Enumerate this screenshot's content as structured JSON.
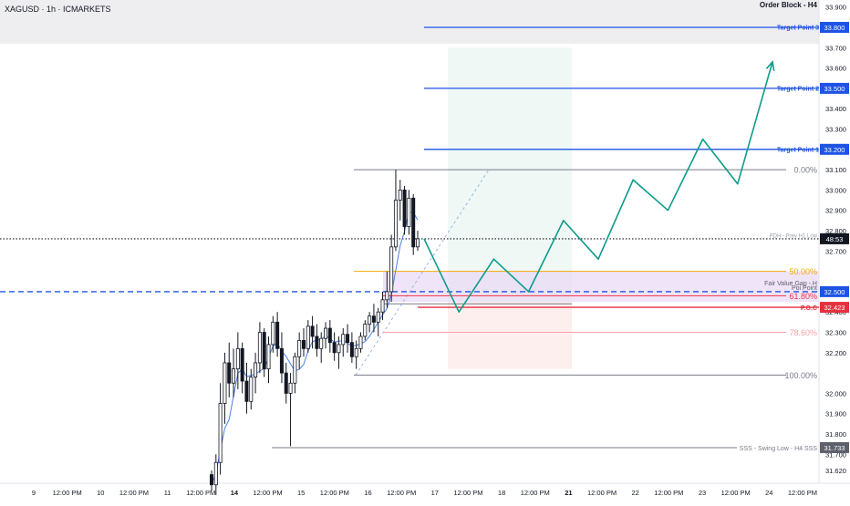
{
  "symbol_label": "XAGUSD · 1h · ICMARKETS",
  "header_right": "Order Block - H4",
  "colors": {
    "accent": "#1e53e5",
    "up_candle": "#ffffff",
    "down_candle": "#131722",
    "path": "#0d9b8a",
    "fib": "#787b86",
    "fib_50": "#f7a600",
    "fib_618": "#f23645",
    "fvg_fill": "#e9d9f5",
    "poc": "#e5313f",
    "ma": "#4a7fe8"
  },
  "chart_data": {
    "type": "candlestick",
    "y_axis_ticks": [
      "33.900",
      "33.700",
      "33.600",
      "33.400",
      "33.300",
      "33.100",
      "33.000",
      "32.900",
      "32.800",
      "32.700",
      "32.400",
      "32.300",
      "32.200",
      "32.000",
      "31.900",
      "31.800",
      "31.700",
      "31.620"
    ],
    "x_axis_ticks": [
      "9",
      "12:00 PM",
      "10",
      "12:00 PM",
      "11",
      "12:00 PM",
      "14",
      "12:00 PM",
      "15",
      "12:00 PM",
      "16",
      "12:00 PM",
      "17",
      "12:00 PM",
      "18",
      "12:00 PM",
      "21",
      "12:00 PM",
      "22",
      "12:00 PM",
      "23",
      "12:00 PM",
      "24",
      "12:00 PM"
    ],
    "bold_x_ticks": [
      "14",
      "21"
    ],
    "price_lines": [
      {
        "label": "Target Point 3",
        "value": 33.8,
        "tag": "33.800"
      },
      {
        "label": "Target Point 2",
        "value": 33.5,
        "tag": "33.500"
      },
      {
        "label": "Target Point 1",
        "value": 33.2,
        "tag": "33.200"
      }
    ],
    "current_price_tag": "48:53",
    "current_price_line": 32.76,
    "blue_dashed_level": {
      "value": 32.5,
      "tag": "32.500"
    },
    "poc": {
      "label": "P.O.C",
      "value": 32.423,
      "tag": "32.423"
    },
    "swing_low": {
      "label": "SSS - Swing Low - H4 SSS",
      "value": 31.733,
      "tag": "31.733"
    },
    "fib_levels": [
      {
        "label": "0.00%",
        "value": 33.1
      },
      {
        "label": "50.00%",
        "value": 32.6
      },
      {
        "label": "61.80%",
        "value": 32.48
      },
      {
        "label": "78.60%",
        "value": 32.3
      },
      {
        "label": "100.00%",
        "value": 32.09
      }
    ],
    "zone_labels": {
      "pdh": "PDH - Prev H1 Low",
      "fvg": "Fair Value Gap - H",
      "poi": "Poi Point"
    },
    "projected_path": [
      [
        32.76,
        0
      ],
      [
        32.4,
        1
      ],
      [
        32.66,
        2
      ],
      [
        32.5,
        3
      ],
      [
        32.85,
        4
      ],
      [
        32.66,
        5
      ],
      [
        33.05,
        6
      ],
      [
        32.9,
        7
      ],
      [
        33.25,
        8
      ],
      [
        33.03,
        9
      ],
      [
        33.63,
        10
      ]
    ],
    "ohlc": [
      [
        31.6,
        31.62,
        31.52,
        31.55
      ],
      [
        31.55,
        31.7,
        31.5,
        31.66
      ],
      [
        31.66,
        32.05,
        31.6,
        31.95
      ],
      [
        31.95,
        32.2,
        31.85,
        32.15
      ],
      [
        32.15,
        32.25,
        31.98,
        32.05
      ],
      [
        32.05,
        32.22,
        31.98,
        32.12
      ],
      [
        32.12,
        32.3,
        32.02,
        32.22
      ],
      [
        32.22,
        32.25,
        32.0,
        32.06
      ],
      [
        32.06,
        32.15,
        31.9,
        31.96
      ],
      [
        31.96,
        32.12,
        31.92,
        32.08
      ],
      [
        32.08,
        32.2,
        32.0,
        32.15
      ],
      [
        32.15,
        32.35,
        32.1,
        32.3
      ],
      [
        32.3,
        32.32,
        32.08,
        32.12
      ],
      [
        32.12,
        32.28,
        32.05,
        32.24
      ],
      [
        32.24,
        32.38,
        32.2,
        32.35
      ],
      [
        32.35,
        32.4,
        32.18,
        32.22
      ],
      [
        32.22,
        32.3,
        32.05,
        32.1
      ],
      [
        32.1,
        32.15,
        31.95,
        32.0
      ],
      [
        32.0,
        32.1,
        31.74,
        32.05
      ],
      [
        32.05,
        32.2,
        32.0,
        32.18
      ],
      [
        32.18,
        32.3,
        32.12,
        32.26
      ],
      [
        32.26,
        32.32,
        32.18,
        32.22
      ],
      [
        32.22,
        32.36,
        32.2,
        32.33
      ],
      [
        32.33,
        32.38,
        32.22,
        32.28
      ],
      [
        32.28,
        32.34,
        32.18,
        32.22
      ],
      [
        32.22,
        32.3,
        32.15,
        32.27
      ],
      [
        32.27,
        32.35,
        32.22,
        32.32
      ],
      [
        32.32,
        32.36,
        32.2,
        32.25
      ],
      [
        32.25,
        32.3,
        32.16,
        32.2
      ],
      [
        32.2,
        32.28,
        32.12,
        32.24
      ],
      [
        32.24,
        32.32,
        32.18,
        32.29
      ],
      [
        32.29,
        32.34,
        32.2,
        32.25
      ],
      [
        32.25,
        32.3,
        32.15,
        32.18
      ],
      [
        32.18,
        32.26,
        32.12,
        32.22
      ],
      [
        32.22,
        32.3,
        32.2,
        32.28
      ],
      [
        32.28,
        32.36,
        32.26,
        32.34
      ],
      [
        32.34,
        32.4,
        32.3,
        32.38
      ],
      [
        32.38,
        32.44,
        32.3,
        32.35
      ],
      [
        32.35,
        32.42,
        32.28,
        32.4
      ],
      [
        32.4,
        32.5,
        32.36,
        32.46
      ],
      [
        32.46,
        32.6,
        32.42,
        32.5
      ],
      [
        32.5,
        32.78,
        32.45,
        32.72
      ],
      [
        32.72,
        33.1,
        32.7,
        32.95
      ],
      [
        32.95,
        33.05,
        32.85,
        33.0
      ],
      [
        33.0,
        33.02,
        32.78,
        32.82
      ],
      [
        32.82,
        33.0,
        32.78,
        32.96
      ],
      [
        32.96,
        32.98,
        32.68,
        32.72
      ],
      [
        32.72,
        32.8,
        32.7,
        32.76
      ]
    ]
  }
}
